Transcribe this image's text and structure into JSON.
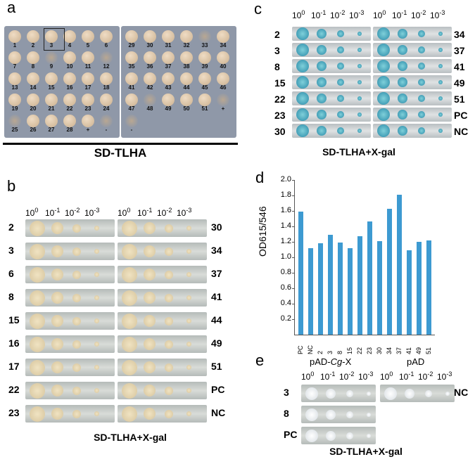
{
  "panel_a": {
    "letter": "a",
    "caption": "SD-TLHA",
    "left_plate_numbers": [
      "1",
      "2",
      "3",
      "4",
      "5",
      "6",
      "7",
      "8",
      "9",
      "10",
      "11",
      "12",
      "13",
      "14",
      "15",
      "16",
      "17",
      "18",
      "19",
      "20",
      "21",
      "22",
      "23",
      "24",
      "25",
      "26",
      "27",
      "28",
      "+",
      "-"
    ],
    "right_plate_numbers": [
      "29",
      "30",
      "31",
      "32",
      "33",
      "34",
      "35",
      "36",
      "37",
      "38",
      "39",
      "40",
      "41",
      "42",
      "43",
      "44",
      "45",
      "46",
      "47",
      "48",
      "49",
      "50",
      "51",
      "+",
      "-"
    ]
  },
  "panel_b": {
    "letter": "b",
    "caption": "SD-TLHA+X-gal",
    "dilution_base": "10",
    "dilution_exponents": [
      "0",
      "-1",
      "-2",
      "-3"
    ],
    "left_rows": [
      "2",
      "3",
      "6",
      "8",
      "15",
      "16",
      "17",
      "22",
      "23"
    ],
    "right_rows": [
      "30",
      "34",
      "37",
      "41",
      "44",
      "49",
      "51",
      "PC",
      "NC"
    ]
  },
  "panel_c": {
    "letter": "c",
    "caption": "SD-TLHA+X-gal",
    "dilution_base": "10",
    "dilution_exponents": [
      "0",
      "-1",
      "-2",
      "-3"
    ],
    "left_rows": [
      "2",
      "3",
      "8",
      "15",
      "22",
      "23",
      "30"
    ],
    "right_rows": [
      "34",
      "37",
      "41",
      "49",
      "51",
      "PC",
      "NC"
    ]
  },
  "panel_d": {
    "letter": "d",
    "ylabel": "OD615/546"
  },
  "panel_e": {
    "letter": "e",
    "caption": "SD-TLHA+X-gal",
    "left_title_prefix": "pAD-",
    "left_title_italic": "Cg",
    "left_title_suffix": "-X",
    "right_title": "pAD",
    "dilution_base": "10",
    "dilution_exponents": [
      "0",
      "-1",
      "-2",
      "-3"
    ],
    "left_rows": [
      "3",
      "8",
      "PC"
    ],
    "right_rows": [
      "NC"
    ]
  },
  "chart_data": {
    "type": "bar",
    "title": "",
    "xlabel": "",
    "ylabel": "OD615/546",
    "categories": [
      "PC",
      "NC",
      "2",
      "3",
      "8",
      "15",
      "22",
      "23",
      "30",
      "34",
      "37",
      "41",
      "49",
      "51"
    ],
    "values": [
      1.59,
      1.12,
      1.18,
      1.29,
      1.19,
      1.12,
      1.27,
      1.46,
      1.21,
      1.63,
      1.81,
      1.09,
      1.2,
      1.22
    ],
    "ylim": [
      0,
      2.0
    ],
    "yticks": [
      "0.2",
      "0.4",
      "0.6",
      "0.8",
      "1.0",
      "1.2",
      "1.4",
      "1.6",
      "1.8",
      "2.0"
    ],
    "bar_color": "#3d9ad1",
    "grid": false
  }
}
